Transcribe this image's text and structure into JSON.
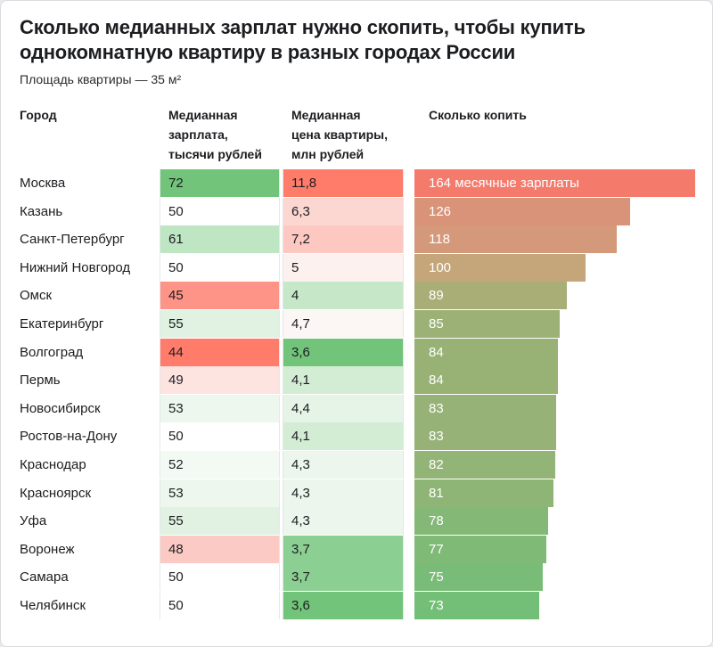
{
  "title": "Сколько медианных зарплат нужно скопить, чтобы купить однокомнатную квартиру в разных городах России",
  "subtitle": "Площадь квартиры — 35 м²",
  "headers": {
    "city": "Город",
    "salary": "Медианная\nзарплата,\nтысячи рублей",
    "price": "Медианная\nцена квартиры,\nмлн рублей",
    "save": "Сколько копить"
  },
  "chart_data": {
    "type": "table",
    "columns": [
      "Город",
      "Медианная зарплата, тысячи рублей",
      "Медианная цена квартиры, млн рублей",
      "Сколько копить"
    ],
    "rows": [
      {
        "city": "Москва",
        "salary": "72",
        "price": "11,8",
        "save": 164,
        "save_label": "164 месячные зарплаты",
        "salary_color": "#71c47a",
        "price_color": "#ff7b6a",
        "bar_color": "#f47a6c"
      },
      {
        "city": "Казань",
        "salary": "50",
        "price": "6,3",
        "save": 126,
        "save_label": "126",
        "salary_color": "#ffffff",
        "price_color": "#fcd7d2",
        "bar_color": "#d89378"
      },
      {
        "city": "Санкт-Петербург",
        "salary": "61",
        "price": "7,2",
        "save": 118,
        "save_label": "118",
        "salary_color": "#bfe6c2",
        "price_color": "#fcc8c1",
        "bar_color": "#d4997a"
      },
      {
        "city": "Нижний Новгород",
        "salary": "50",
        "price": "5",
        "save": 100,
        "save_label": "100",
        "salary_color": "#ffffff",
        "price_color": "#fdf1ef",
        "bar_color": "#c4a67a"
      },
      {
        "city": "Омск",
        "salary": "45",
        "price": "4",
        "save": 89,
        "save_label": "89",
        "salary_color": "#fe9488",
        "price_color": "#c6e8c8",
        "bar_color": "#a9ad76"
      },
      {
        "city": "Екатеринбург",
        "salary": "55",
        "price": "4,7",
        "save": 85,
        "save_label": "85",
        "salary_color": "#e1f2e2",
        "price_color": "#fcf6f5",
        "bar_color": "#9cb176"
      },
      {
        "city": "Волгоград",
        "salary": "44",
        "price": "3,6",
        "save": 84,
        "save_label": "84",
        "salary_color": "#ff7b6a",
        "price_color": "#71c47a",
        "bar_color": "#98b276"
      },
      {
        "city": "Пермь",
        "salary": "49",
        "price": "4,1",
        "save": 84,
        "save_label": "84",
        "salary_color": "#fde4e1",
        "price_color": "#d3edd5",
        "bar_color": "#98b276"
      },
      {
        "city": "Новосибирск",
        "salary": "53",
        "price": "4,4",
        "save": 83,
        "save_label": "83",
        "salary_color": "#edf7ee",
        "price_color": "#e6f4e7",
        "bar_color": "#96b276"
      },
      {
        "city": "Ростов-на-Дону",
        "salary": "50",
        "price": "4,1",
        "save": 83,
        "save_label": "83",
        "salary_color": "#ffffff",
        "price_color": "#d3edd5",
        "bar_color": "#96b276"
      },
      {
        "city": "Краснодар",
        "salary": "52",
        "price": "4,3",
        "save": 82,
        "save_label": "82",
        "salary_color": "#f3faf4",
        "price_color": "#ecf6ed",
        "bar_color": "#92b476"
      },
      {
        "city": "Красноярск",
        "salary": "53",
        "price": "4,3",
        "save": 81,
        "save_label": "81",
        "salary_color": "#edf7ee",
        "price_color": "#ecf6ed",
        "bar_color": "#8fb576"
      },
      {
        "city": "Уфа",
        "salary": "55",
        "price": "4,3",
        "save": 78,
        "save_label": "78",
        "salary_color": "#e1f2e2",
        "price_color": "#ecf6ed",
        "bar_color": "#84b876"
      },
      {
        "city": "Воронеж",
        "salary": "48",
        "price": "3,7",
        "save": 77,
        "save_label": "77",
        "salary_color": "#fccac4",
        "price_color": "#8ccf92",
        "bar_color": "#7fba77"
      },
      {
        "city": "Самара",
        "salary": "50",
        "price": "3,7",
        "save": 75,
        "save_label": "75",
        "salary_color": "#ffffff",
        "price_color": "#8ccf92",
        "bar_color": "#79bc77"
      },
      {
        "city": "Челябинск",
        "salary": "50",
        "price": "3,6",
        "save": 73,
        "save_label": "73",
        "salary_color": "#ffffff",
        "price_color": "#71c47a",
        "bar_color": "#73bf77"
      }
    ]
  }
}
